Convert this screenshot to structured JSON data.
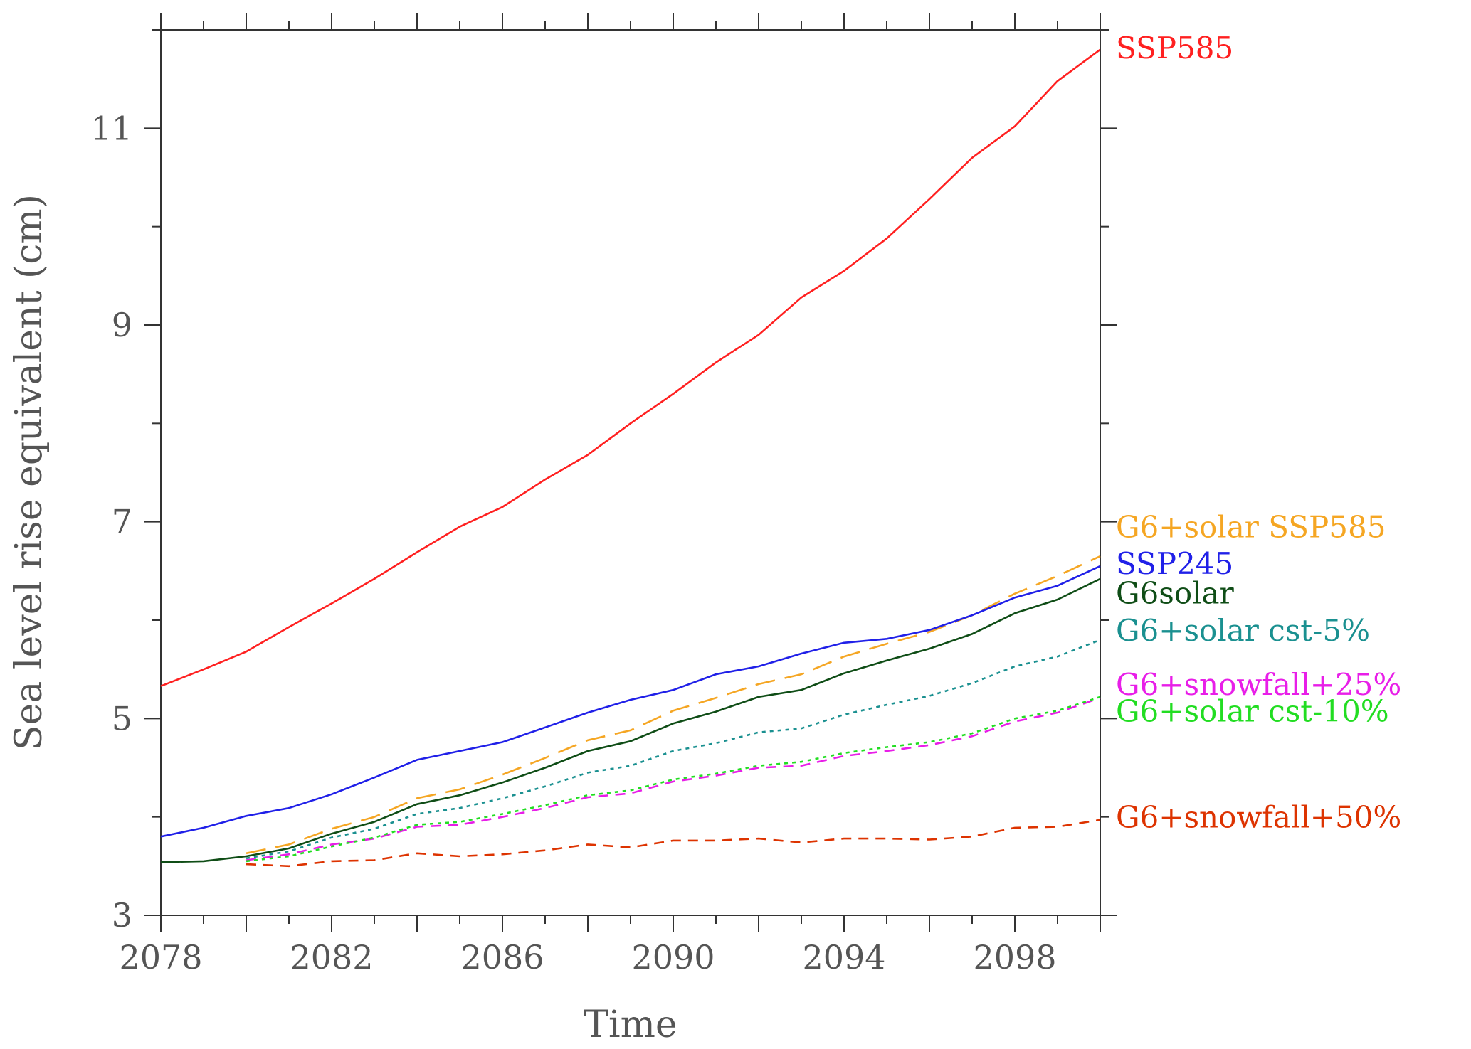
{
  "chart_data": {
    "type": "line",
    "xlabel": "Time",
    "ylabel": "Sea level rise equivalent (cm)",
    "xlim": [
      2078,
      2100
    ],
    "ylim": [
      3,
      12
    ],
    "x_ticks_labeled": [
      "2078",
      "2082",
      "2086",
      "2090",
      "2094",
      "2098"
    ],
    "y_ticks_labeled": [
      "3",
      "5",
      "7",
      "9",
      "11"
    ],
    "legend_placement": "right-edge labels at line ends",
    "series": [
      {
        "name": "SSP585",
        "color": "#ff2020",
        "style": "solid",
        "label_y": 11.82,
        "x": [
          2078,
          2079,
          2080,
          2081,
          2082,
          2083,
          2084,
          2085,
          2086,
          2087,
          2088,
          2089,
          2090,
          2091,
          2092,
          2093,
          2094,
          2095,
          2096,
          2097,
          2098,
          2099,
          2100
        ],
        "y": [
          5.33,
          5.5,
          5.68,
          5.93,
          6.17,
          6.42,
          6.69,
          6.95,
          7.15,
          7.43,
          7.68,
          8.0,
          8.3,
          8.62,
          8.9,
          9.28,
          9.55,
          9.88,
          10.28,
          10.7,
          11.02,
          11.48,
          11.8
        ]
      },
      {
        "name": "G6+solar SSP585",
        "color": "#f5a623",
        "style": "longdash",
        "label_y": 6.95,
        "x": [
          2080,
          2081,
          2082,
          2083,
          2084,
          2085,
          2086,
          2087,
          2088,
          2089,
          2090,
          2091,
          2092,
          2093,
          2094,
          2095,
          2096,
          2097,
          2098,
          2099,
          2100
        ],
        "y": [
          3.63,
          3.72,
          3.88,
          4.0,
          4.19,
          4.28,
          4.43,
          4.6,
          4.78,
          4.88,
          5.08,
          5.21,
          5.35,
          5.45,
          5.63,
          5.76,
          5.88,
          6.05,
          6.27,
          6.45,
          6.65
        ]
      },
      {
        "name": "SSP245",
        "color": "#2020e8",
        "style": "solid",
        "label_y": 6.58,
        "x": [
          2078,
          2079,
          2080,
          2081,
          2082,
          2083,
          2084,
          2085,
          2086,
          2087,
          2088,
          2089,
          2090,
          2091,
          2092,
          2093,
          2094,
          2095,
          2096,
          2097,
          2098,
          2099,
          2100
        ],
        "y": [
          3.8,
          3.89,
          4.01,
          4.09,
          4.23,
          4.4,
          4.58,
          4.67,
          4.76,
          4.91,
          5.06,
          5.19,
          5.29,
          5.45,
          5.53,
          5.66,
          5.77,
          5.81,
          5.9,
          6.05,
          6.23,
          6.35,
          6.55
        ]
      },
      {
        "name": "G6solar",
        "color": "#0f4d16",
        "style": "solid",
        "label_y": 6.28,
        "x": [
          2078,
          2079,
          2080,
          2081,
          2082,
          2083,
          2084,
          2085,
          2086,
          2087,
          2088,
          2089,
          2090,
          2091,
          2092,
          2093,
          2094,
          2095,
          2096,
          2097,
          2098,
          2099,
          2100
        ],
        "y": [
          3.54,
          3.55,
          3.6,
          3.68,
          3.83,
          3.95,
          4.13,
          4.22,
          4.35,
          4.5,
          4.67,
          4.77,
          4.95,
          5.07,
          5.22,
          5.29,
          5.46,
          5.59,
          5.71,
          5.86,
          6.07,
          6.21,
          6.42
        ]
      },
      {
        "name": "G6+solar cst-5%",
        "color": "#1a9090",
        "style": "dotted",
        "label_y": 5.9,
        "x": [
          2080,
          2081,
          2082,
          2083,
          2084,
          2085,
          2086,
          2087,
          2088,
          2089,
          2090,
          2091,
          2092,
          2093,
          2094,
          2095,
          2096,
          2097,
          2098,
          2099,
          2100
        ],
        "y": [
          3.58,
          3.65,
          3.79,
          3.88,
          4.03,
          4.09,
          4.19,
          4.31,
          4.45,
          4.52,
          4.67,
          4.75,
          4.86,
          4.9,
          5.04,
          5.14,
          5.23,
          5.36,
          5.53,
          5.63,
          5.8
        ]
      },
      {
        "name": "G6+snowfall+25%",
        "color": "#e81ee8",
        "style": "dashed",
        "label_y": 5.35,
        "x": [
          2080,
          2081,
          2082,
          2083,
          2084,
          2085,
          2086,
          2087,
          2088,
          2089,
          2090,
          2091,
          2092,
          2093,
          2094,
          2095,
          2096,
          2097,
          2098,
          2099,
          2100
        ],
        "y": [
          3.56,
          3.62,
          3.72,
          3.78,
          3.9,
          3.92,
          4.0,
          4.09,
          4.2,
          4.24,
          4.36,
          4.42,
          4.5,
          4.52,
          4.62,
          4.67,
          4.73,
          4.82,
          4.97,
          5.06,
          5.21
        ]
      },
      {
        "name": "G6+solar cst-10%",
        "color": "#22dd22",
        "style": "dotted",
        "label_y": 5.08,
        "x": [
          2080,
          2081,
          2082,
          2083,
          2084,
          2085,
          2086,
          2087,
          2088,
          2089,
          2090,
          2091,
          2092,
          2093,
          2094,
          2095,
          2096,
          2097,
          2098,
          2099,
          2100
        ],
        "y": [
          3.55,
          3.6,
          3.7,
          3.79,
          3.92,
          3.95,
          4.03,
          4.12,
          4.22,
          4.27,
          4.38,
          4.44,
          4.52,
          4.56,
          4.65,
          4.71,
          4.76,
          4.85,
          5.0,
          5.08,
          5.22
        ]
      },
      {
        "name": "G6+snowfall+50%",
        "color": "#dd3300",
        "style": "dashed",
        "label_y": 4.0,
        "x": [
          2080,
          2081,
          2082,
          2083,
          2084,
          2085,
          2086,
          2087,
          2088,
          2089,
          2090,
          2091,
          2092,
          2093,
          2094,
          2095,
          2096,
          2097,
          2098,
          2099,
          2100
        ],
        "y": [
          3.52,
          3.5,
          3.55,
          3.56,
          3.63,
          3.6,
          3.62,
          3.66,
          3.72,
          3.69,
          3.76,
          3.76,
          3.78,
          3.74,
          3.78,
          3.78,
          3.77,
          3.8,
          3.89,
          3.9,
          3.97
        ]
      }
    ]
  }
}
